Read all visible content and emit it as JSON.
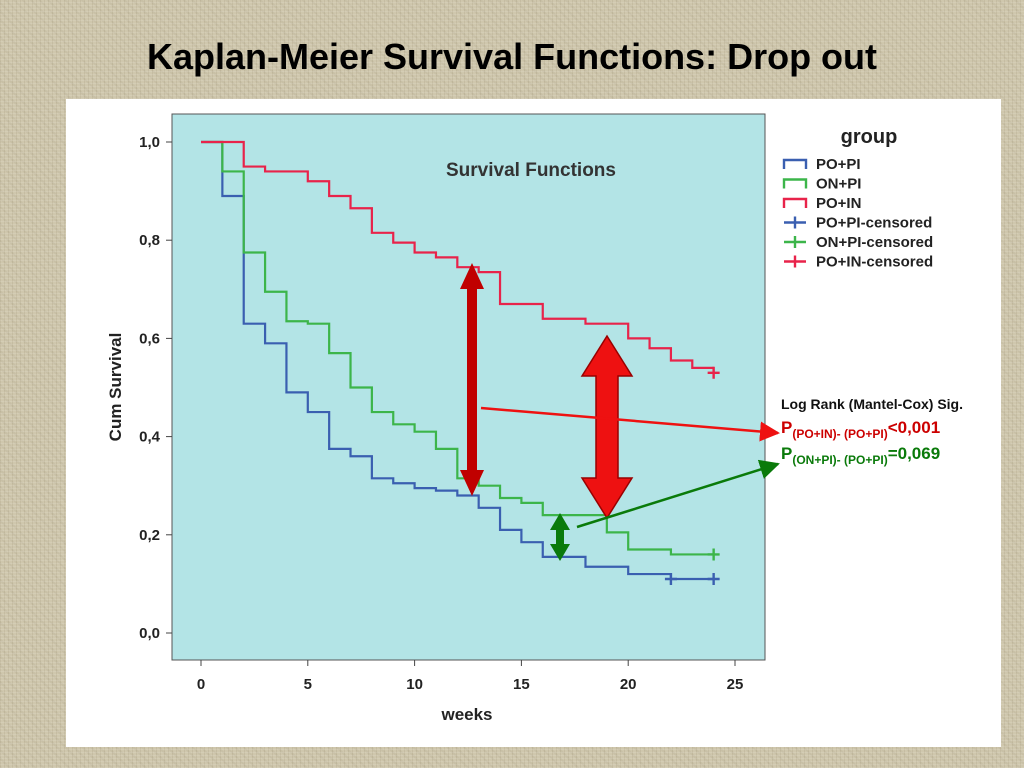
{
  "slide": {
    "title": "Kaplan-Meier Survival Functions: Drop out"
  },
  "colors": {
    "slide_background": "#cfc7ad",
    "panel_background": "#ffffff",
    "plot_background": "#b3e4e6",
    "PO+PI": "#3a5fb0",
    "ON+PI": "#3cb54a",
    "PO+IN": "#e8234a",
    "arrow_big": "#ee1111",
    "arrow_dark": "#c00000",
    "arrow_green": "#0a7a0a",
    "text_red": "#cc0000",
    "text_green": "#0a7a0a"
  },
  "chart_data": {
    "type": "line",
    "step": true,
    "title": "Survival Functions",
    "xlabel": "weeks",
    "ylabel": "Cum Survival",
    "xlim": [
      0,
      25
    ],
    "ylim": [
      0,
      1
    ],
    "xticks": [
      0,
      5,
      10,
      15,
      20,
      25
    ],
    "xtick_labels": [
      "0",
      "5",
      "10",
      "15",
      "20",
      "25"
    ],
    "yticks": [
      0,
      0.2,
      0.4,
      0.6,
      0.8,
      1.0
    ],
    "ytick_labels": [
      "0,0",
      "0,2",
      "0,4",
      "0,6",
      "0,8",
      "1,0"
    ],
    "legend_title": "group",
    "legend_position": "right",
    "legend": [
      "PO+PI",
      "ON+PI",
      "PO+IN",
      "PO+PI-censored",
      "ON+PI-censored",
      "PO+IN-censored"
    ],
    "series": [
      {
        "name": "PO+PI",
        "steps": [
          [
            0,
            1.0
          ],
          [
            1,
            0.89
          ],
          [
            2,
            0.63
          ],
          [
            3,
            0.59
          ],
          [
            4,
            0.49
          ],
          [
            5,
            0.45
          ],
          [
            6,
            0.375
          ],
          [
            7,
            0.36
          ],
          [
            8,
            0.315
          ],
          [
            9,
            0.305
          ],
          [
            10,
            0.295
          ],
          [
            11,
            0.29
          ],
          [
            12,
            0.28
          ],
          [
            13,
            0.255
          ],
          [
            14,
            0.21
          ],
          [
            15,
            0.185
          ],
          [
            16,
            0.155
          ],
          [
            18,
            0.135
          ],
          [
            20,
            0.12
          ],
          [
            22,
            0.11
          ],
          [
            24,
            0.11
          ]
        ],
        "censored": [
          [
            22,
            0.11
          ],
          [
            24,
            0.11
          ]
        ]
      },
      {
        "name": "ON+PI",
        "steps": [
          [
            0,
            1.0
          ],
          [
            1,
            0.94
          ],
          [
            2,
            0.775
          ],
          [
            3,
            0.695
          ],
          [
            4,
            0.635
          ],
          [
            5,
            0.63
          ],
          [
            6,
            0.57
          ],
          [
            7,
            0.5
          ],
          [
            8,
            0.45
          ],
          [
            9,
            0.425
          ],
          [
            10,
            0.41
          ],
          [
            11,
            0.375
          ],
          [
            12,
            0.315
          ],
          [
            13,
            0.3
          ],
          [
            14,
            0.275
          ],
          [
            15,
            0.265
          ],
          [
            16,
            0.24
          ],
          [
            19,
            0.205
          ],
          [
            20,
            0.17
          ],
          [
            22,
            0.16
          ],
          [
            24,
            0.16
          ]
        ],
        "censored": [
          [
            24,
            0.16
          ]
        ]
      },
      {
        "name": "PO+IN",
        "steps": [
          [
            0,
            1.0
          ],
          [
            2,
            0.95
          ],
          [
            3,
            0.94
          ],
          [
            5,
            0.92
          ],
          [
            6,
            0.89
          ],
          [
            7,
            0.865
          ],
          [
            8,
            0.815
          ],
          [
            9,
            0.795
          ],
          [
            10,
            0.775
          ],
          [
            11,
            0.765
          ],
          [
            12,
            0.745
          ],
          [
            13,
            0.735
          ],
          [
            14,
            0.67
          ],
          [
            16,
            0.64
          ],
          [
            18,
            0.63
          ],
          [
            20,
            0.6
          ],
          [
            21,
            0.58
          ],
          [
            22,
            0.555
          ],
          [
            23,
            0.54
          ],
          [
            24,
            0.54
          ]
        ],
        "censored": [
          [
            24,
            0.53
          ]
        ]
      }
    ],
    "annotations": {
      "stats_heading": "Log Rank (Mantel-Cox)  Sig.",
      "p1_prefix": "P",
      "p1_sub": "(PO+IN)- (PO+PI)",
      "p1_value": "<0,001",
      "p2_prefix": "P",
      "p2_sub": "(ON+PI)- (PO+PI)",
      "p2_value": "=0,069"
    }
  }
}
